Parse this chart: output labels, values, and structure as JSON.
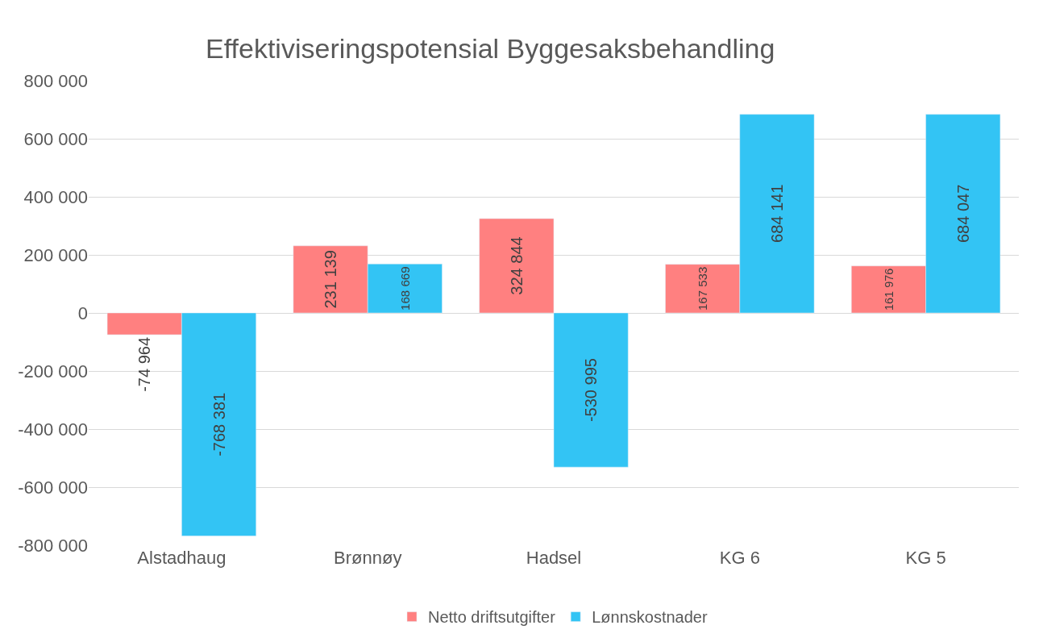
{
  "chart_data": {
    "type": "bar",
    "title": "Effektiviseringspotensial Byggesaksbehandling",
    "categories": [
      "Alstadhaug",
      "Brønnøy",
      "Hadsel",
      "KG 6",
      "KG 5"
    ],
    "series": [
      {
        "name": "Netto driftsutgifter",
        "color": "#ff8080",
        "values": [
          -74964,
          231139,
          324844,
          167533,
          161976
        ]
      },
      {
        "name": "Lønnskostnader",
        "color": "#33c4f4",
        "values": [
          -768381,
          168669,
          -530995,
          684141,
          684047
        ]
      }
    ],
    "ylim": [
      -800000,
      800000
    ],
    "yticks": [
      {
        "value": -800000,
        "label": "-800 000"
      },
      {
        "value": -600000,
        "label": "-600 000"
      },
      {
        "value": -400000,
        "label": "-400 000"
      },
      {
        "value": -200000,
        "label": "-200 000"
      },
      0,
      {
        "value": 200000,
        "label": "200 000"
      },
      {
        "value": 400000,
        "label": "400 000"
      },
      {
        "value": 600000,
        "label": "600 000"
      },
      {
        "value": 800000,
        "label": "800 000"
      }
    ],
    "grid": "y",
    "legend": "bottom",
    "data_labels": true
  }
}
